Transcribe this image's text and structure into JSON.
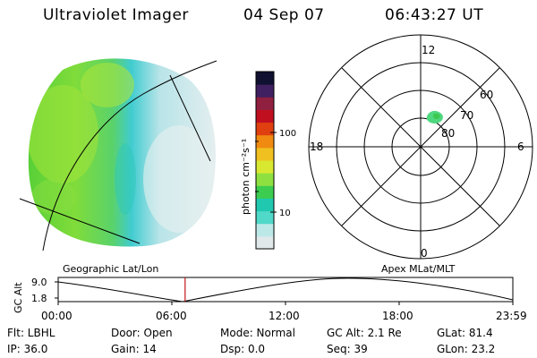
{
  "header": {
    "title": "Ultraviolet Imager",
    "date": "04 Sep 07",
    "time": "06:43:27 UT"
  },
  "colorbar": {
    "unit_label": "photon cm⁻²s⁻¹",
    "ticks": [
      "100",
      "10"
    ],
    "colors": [
      "#e0e8ea",
      "#bde8e8",
      "#50d8c8",
      "#20c8b0",
      "#3ccc50",
      "#8ee040",
      "#d8e830",
      "#f0c020",
      "#f08a10",
      "#e04010",
      "#c01020",
      "#902040",
      "#402060",
      "#101030"
    ]
  },
  "polar_plot": {
    "mlt_labels": {
      "top": "12",
      "bottom": "0",
      "left": "18",
      "right": "6"
    },
    "lat_labels": [
      "60",
      "70",
      "80"
    ]
  },
  "timeline": {
    "left_label": "Geographic Lat/Lon",
    "right_label": "Apex MLat/MLT",
    "y_axis_title": "GC Alt",
    "y_ticks": [
      "9.0",
      "1.8"
    ],
    "x_ticks": [
      "00:00",
      "06:00",
      "12:00",
      "18:00",
      "23:59"
    ],
    "current_time_hours": 6.7
  },
  "info": {
    "flt": "Flt: LBHL",
    "ip": "IP: 36.0",
    "door": "Door: Open",
    "gain": "Gain: 14",
    "mode": "Mode: Normal",
    "dsp": "Dsp:     0.0",
    "gc_alt": "GC Alt: 2.1 Re",
    "seq": "Seq: 39",
    "glat": "GLat:  81.4",
    "glon": "GLon:  23.2"
  }
}
